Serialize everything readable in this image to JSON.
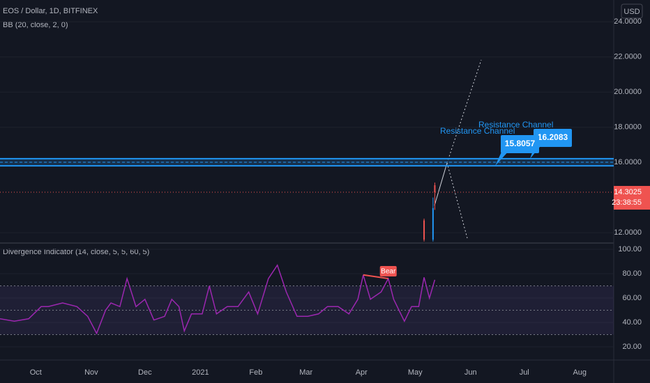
{
  "chart_data": [
    {
      "type": "candlestick",
      "title": "EOS / Dollar, 1D, BITFINEX",
      "subtitle": "BB (20, close, 2, 0)",
      "currency": "USD",
      "x": [
        237,
        242,
        243
      ],
      "open": [
        12.7,
        11.6,
        14.7
      ],
      "high": [
        12.8,
        14.0,
        14.85
      ],
      "low": [
        11.5,
        11.5,
        13.3
      ],
      "close": [
        11.6,
        13.4,
        14.3025
      ],
      "up_color": "#2196f3",
      "down_color": "#ef5350",
      "countdown": "23:38:55",
      "xlim": [
        0,
        343
      ],
      "ylim": [
        11.45,
        25.24
      ],
      "yticks": [
        {
          "value": 12,
          "label": "12.0000"
        },
        {
          "value": 16,
          "label": "16.0000"
        },
        {
          "value": 18,
          "label": "18.0000"
        },
        {
          "value": 20,
          "label": "20.0000"
        },
        {
          "value": 22,
          "label": "22.0000"
        },
        {
          "value": 24,
          "label": "24.0000"
        }
      ],
      "channel": {
        "color": "#2196f3",
        "upper": 16.2083,
        "lower": 15.8057
      },
      "annotations": [
        {
          "text": "Resistance Channel",
          "value": 16.2083
        },
        {
          "text": "Resistance Channel",
          "value": 15.8057
        }
      ]
    },
    {
      "type": "line",
      "title": "Divergence Indicator (14, close, 5, 5, 60, 5)",
      "color": "#9c27b0",
      "x": [
        0,
        8,
        16,
        23,
        27,
        35,
        43,
        49,
        54,
        59,
        62,
        67,
        71,
        76,
        81,
        86,
        92,
        96,
        100,
        103,
        107,
        113,
        117,
        121,
        127,
        133,
        139,
        144,
        150,
        155,
        160,
        166,
        172,
        178,
        183,
        189,
        195,
        200,
        203,
        207,
        213,
        217,
        220,
        226,
        230,
        234,
        237,
        240,
        243
      ],
      "values": [
        43,
        41,
        43,
        53,
        53,
        56,
        53,
        45,
        31,
        50,
        56,
        53,
        76,
        53,
        59,
        42,
        45,
        59,
        53,
        33,
        47,
        47,
        70,
        47,
        53,
        53,
        65,
        47,
        76,
        87,
        65,
        45,
        45,
        47,
        53,
        53,
        47,
        59,
        79,
        59,
        65,
        76,
        59,
        41,
        53,
        53,
        77,
        60,
        75
      ],
      "levels": [
        30,
        50,
        70
      ],
      "divergence": {
        "label": "Bear",
        "color": "#ef5350",
        "x": [
          203,
          217
        ],
        "values": [
          79,
          76
        ]
      },
      "xlim": [
        0,
        343
      ],
      "ylim": [
        10.3,
        104.6
      ],
      "yticks": [
        {
          "value": 20,
          "label": "20.00"
        },
        {
          "value": 40,
          "label": "40.00"
        },
        {
          "value": 60,
          "label": "60.00"
        },
        {
          "value": 80,
          "label": "80.00"
        },
        {
          "value": 100,
          "label": "100.00"
        }
      ],
      "xticks": [
        {
          "value": 20,
          "label": "Oct"
        },
        {
          "value": 51,
          "label": "Nov"
        },
        {
          "value": 81,
          "label": "Dec"
        },
        {
          "value": 112,
          "label": "2021"
        },
        {
          "value": 143,
          "label": "Feb"
        },
        {
          "value": 171,
          "label": "Mar"
        },
        {
          "value": 202,
          "label": "Apr"
        },
        {
          "value": 232,
          "label": "May"
        },
        {
          "value": 263,
          "label": "Jun"
        },
        {
          "value": 293,
          "label": "Jul"
        },
        {
          "value": 324,
          "label": "Aug"
        }
      ]
    }
  ]
}
